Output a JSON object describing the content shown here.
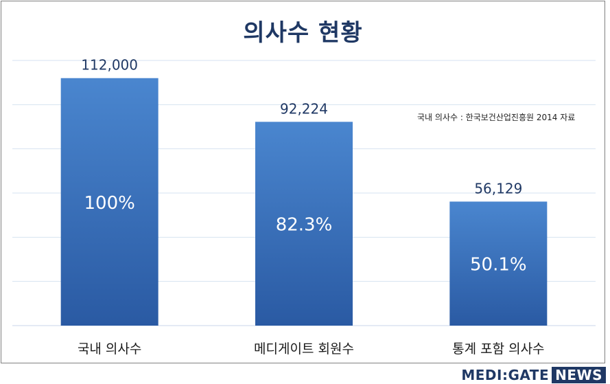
{
  "chart_data": {
    "type": "bar",
    "title": "의사수 현황",
    "categories": [
      "국내 의사수",
      "메디게이트 회원수",
      "통계 포함 의사수"
    ],
    "values": [
      112000,
      92224,
      56129
    ],
    "value_labels": [
      "112,000",
      "92,224",
      "56,129"
    ],
    "percent_labels": [
      "100%",
      "82.3%",
      "50.1%"
    ],
    "ylim": [
      0,
      120000
    ],
    "grid": true,
    "bar_color_top": "#4a86cf",
    "bar_color_bottom": "#2a5aa3",
    "annotation": "국내 의사수 : 한국보건산업진흥원 2014 자료"
  },
  "brand": {
    "part1": "MEDI:GATE",
    "part2": "NEWS"
  }
}
